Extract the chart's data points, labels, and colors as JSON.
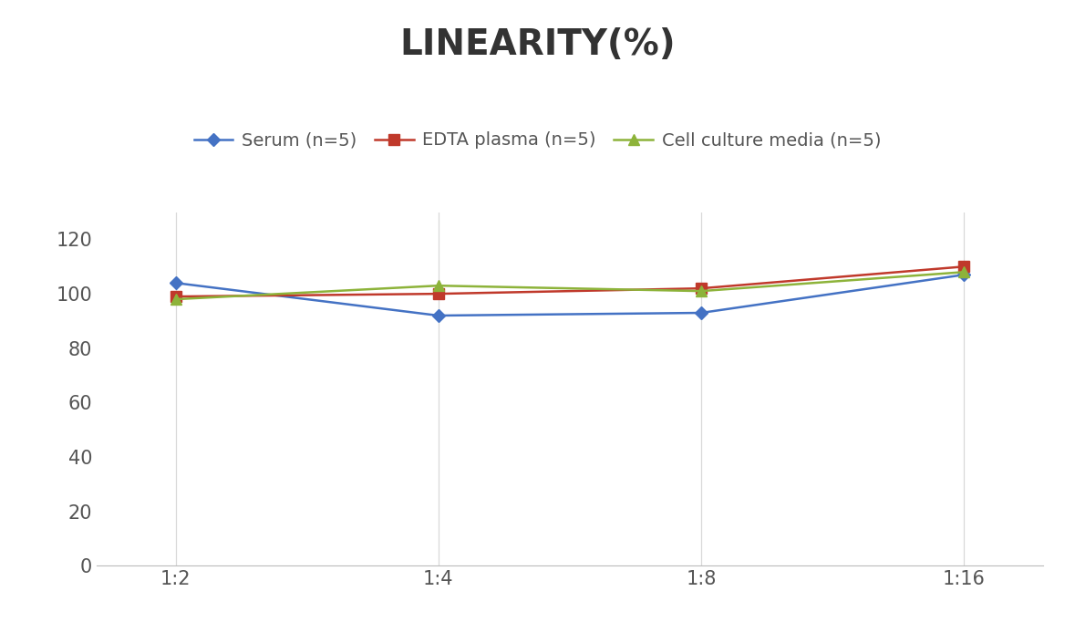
{
  "title": "LINEARITY(%)",
  "x_labels": [
    "1:2",
    "1:4",
    "1:8",
    "1:16"
  ],
  "series": [
    {
      "label": "Serum (n=5)",
      "values": [
        104,
        92,
        93,
        107
      ],
      "color": "#4472C4",
      "marker": "D",
      "markersize": 7
    },
    {
      "label": "EDTA plasma (n=5)",
      "values": [
        99,
        100,
        102,
        110
      ],
      "color": "#C0392B",
      "marker": "s",
      "markersize": 8
    },
    {
      "label": "Cell culture media (n=5)",
      "values": [
        98,
        103,
        101,
        108
      ],
      "color": "#8DB33A",
      "marker": "^",
      "markersize": 8
    }
  ],
  "ylim": [
    0,
    130
  ],
  "yticks": [
    0,
    20,
    40,
    60,
    80,
    100,
    120
  ],
  "title_fontsize": 28,
  "legend_fontsize": 14,
  "tick_fontsize": 15,
  "background_color": "#ffffff",
  "grid_color": "#d8d8d8",
  "linewidth": 1.8,
  "tick_color": "#555555",
  "spine_color": "#bbbbbb"
}
